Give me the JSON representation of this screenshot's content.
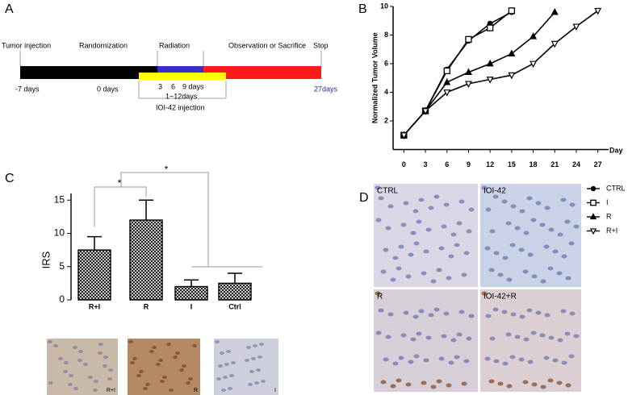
{
  "panel_a": {
    "label": "A",
    "events": [
      "Tumor injection",
      "Randomization",
      "Radiation",
      "Observation or Sacrifice",
      "Stop"
    ],
    "days": [
      "-7 days",
      "0 days",
      "3",
      "6",
      "9 days",
      "27days"
    ],
    "injection_range": "1~12days",
    "injection_label": "IOI-42 injection"
  },
  "chart_data": [
    {
      "type": "line",
      "label": "B",
      "ylabel": "Normalized Tumor Volume",
      "xlabel": "Day",
      "xlim": [
        -1.5,
        28.5
      ],
      "xticks": [
        0,
        3,
        6,
        9,
        12,
        15,
        18,
        21,
        24,
        27
      ],
      "ylim": [
        0,
        10
      ],
      "yticks": [
        2,
        4,
        6,
        8,
        10
      ],
      "series": [
        {
          "name": "CTRL",
          "marker": "circle",
          "color": "#000000",
          "x": [
            0,
            3,
            6,
            9,
            12,
            15
          ],
          "values": [
            1,
            2.7,
            5.6,
            7.6,
            8.8,
            9.6
          ]
        },
        {
          "name": "I",
          "marker": "square",
          "color": "#000000",
          "x": [
            0,
            3,
            6,
            9,
            12,
            15
          ],
          "values": [
            1,
            2.7,
            5.5,
            7.7,
            8.5,
            9.7
          ]
        },
        {
          "name": "R",
          "marker": "triangle",
          "color": "#000000",
          "x": [
            0,
            3,
            6,
            9,
            12,
            15,
            18,
            21
          ],
          "values": [
            1,
            2.7,
            4.7,
            5.4,
            6.0,
            6.7,
            7.9,
            9.6
          ]
        },
        {
          "name": "R+I",
          "marker": "triangle-down",
          "color": "#000000",
          "x": [
            0,
            3,
            6,
            9,
            12,
            15,
            18,
            21,
            24,
            27
          ],
          "values": [
            1,
            2.7,
            4.0,
            4.6,
            4.9,
            5.2,
            6.0,
            7.4,
            8.6,
            9.7
          ]
        }
      ]
    },
    {
      "type": "bar",
      "label": "C",
      "ylabel": "IRS",
      "categories": [
        "R+I",
        "R",
        "I",
        "Ctrl"
      ],
      "values": [
        7.5,
        12,
        2,
        2.5
      ],
      "errors": [
        2,
        3,
        1,
        1.5
      ],
      "ylim": [
        0,
        16
      ],
      "yticks": [
        0,
        5,
        10,
        15
      ],
      "significance": [
        "*",
        "*"
      ],
      "image_labels": [
        "R+I",
        "R",
        "I"
      ]
    }
  ],
  "panel_d": {
    "label": "D",
    "images": [
      "CTRL",
      "IOI-42",
      "R",
      "IOI-42+R"
    ]
  }
}
